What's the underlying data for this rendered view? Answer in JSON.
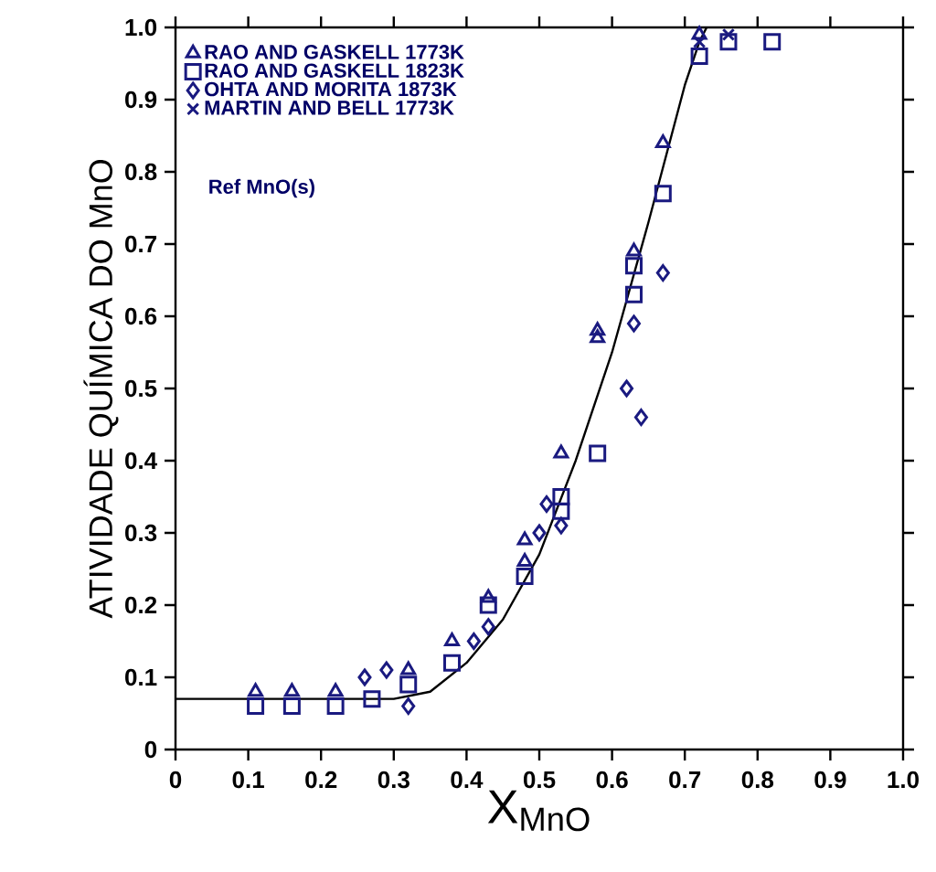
{
  "chart_data": {
    "type": "scatter",
    "xlabel": "X$_{MnO}$",
    "ylabel": "ATIVIDADE QUÍMICA DO MnO",
    "xlim": [
      0,
      1.0
    ],
    "ylim": [
      0,
      1.0
    ],
    "xticks": [
      0,
      0.1,
      0.2,
      0.3,
      0.4,
      0.5,
      0.6,
      0.7,
      0.8,
      0.9,
      {
        "value": 1.0,
        "label": "1.0"
      }
    ],
    "yticks": [
      0,
      0.1,
      0.2,
      0.3,
      0.4,
      0.5,
      0.6,
      0.7,
      0.8,
      0.9,
      {
        "value": 1.0,
        "label": "1.0"
      }
    ],
    "legend": "top left",
    "grid": false,
    "annotations": [
      "Ref MnO(s)"
    ],
    "series": [
      {
        "name": "RAO AND GASKELL 1773K",
        "color": "#1a1a80",
        "marker": "triangle",
        "x": [
          0.11,
          0.16,
          0.22,
          0.32,
          0.38,
          0.43,
          0.48,
          0.48,
          0.53,
          0.58,
          0.58,
          0.63,
          0.67,
          0.72
        ],
        "values": [
          0.08,
          0.08,
          0.08,
          0.11,
          0.15,
          0.21,
          0.26,
          0.29,
          0.41,
          0.57,
          0.58,
          0.69,
          0.84,
          0.99
        ]
      },
      {
        "name": "RAO AND GASKELL 1823K",
        "color": "#1a1a80",
        "marker": "square",
        "x": [
          0.11,
          0.16,
          0.22,
          0.27,
          0.32,
          0.38,
          0.43,
          0.48,
          0.53,
          0.53,
          0.58,
          0.63,
          0.63,
          0.67,
          0.72,
          0.76,
          0.82
        ],
        "values": [
          0.06,
          0.06,
          0.06,
          0.07,
          0.09,
          0.12,
          0.2,
          0.24,
          0.33,
          0.35,
          0.41,
          0.63,
          0.67,
          0.77,
          0.96,
          0.98,
          0.98
        ]
      },
      {
        "name": "OHTA AND MORITA 1873K",
        "color": "#1a1a80",
        "marker": "diamond",
        "x": [
          0.26,
          0.29,
          0.32,
          0.41,
          0.43,
          0.5,
          0.51,
          0.53,
          0.62,
          0.63,
          0.64,
          0.67
        ],
        "values": [
          0.1,
          0.11,
          0.06,
          0.15,
          0.17,
          0.3,
          0.34,
          0.31,
          0.5,
          0.59,
          0.46,
          0.66
        ]
      },
      {
        "name": "MARTIN AND BELL 1773K",
        "color": "#1a1a80",
        "marker": "cross",
        "x": [
          0.72,
          0.76
        ],
        "values": [
          0.98,
          0.99
        ]
      },
      {
        "type": "line",
        "color": "#000000",
        "marker": "none",
        "line_style": "solid",
        "x": [
          0,
          0.1,
          0.2,
          0.3,
          0.35,
          0.4,
          0.45,
          0.5,
          0.55,
          0.6,
          0.65,
          0.7,
          0.72,
          0.73
        ],
        "values": [
          0.07,
          0.07,
          0.07,
          0.07,
          0.08,
          0.12,
          0.18,
          0.27,
          0.4,
          0.55,
          0.73,
          0.92,
          0.98,
          1.0
        ]
      }
    ]
  }
}
